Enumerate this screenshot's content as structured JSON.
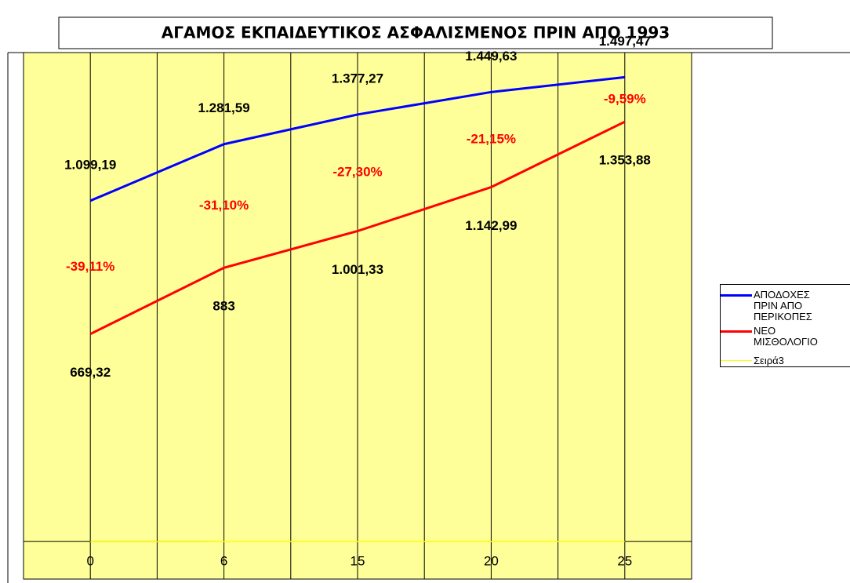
{
  "chart_data": {
    "type": "line",
    "title": "ΑΓΑΜΟΣ ΕΚΠΑΙΔΕΥΤΙΚΟΣ ΑΣΦΑΛΙΣΜΕΝΟΣ ΠΡΙΝ ΑΠΟ 1993",
    "categories": [
      "0",
      "6",
      "15",
      "20",
      "25"
    ],
    "series": [
      {
        "name": "ΑΠΟΔΟΧΕΣ ΠΡΙΝ ΑΠΟ ΠΕΡΙΚΟΠΕΣ",
        "color": "#0000ff",
        "values": [
          1099.19,
          1281.59,
          1377.27,
          1449.63,
          1497.47
        ],
        "value_labels": [
          "1.099,19",
          "1.281,59",
          "1.377,27",
          "1.449,63",
          "1.497,47"
        ]
      },
      {
        "name": "ΝΕΟ ΜΙΣΘΟΛΟΓΙΟ",
        "color": "#ff0000",
        "values": [
          669.32,
          883,
          1001.33,
          1142.99,
          1353.88
        ],
        "value_labels": [
          "669,32",
          "883",
          "1.001,33",
          "1.142,99",
          "1.353,88"
        ]
      },
      {
        "name": "Σειρά3",
        "color": "#ffff00",
        "values": [
          -0.3911,
          -0.311,
          -0.273,
          -0.2115,
          -0.0959
        ],
        "value_labels": [
          "-39,11%",
          "-31,10%",
          "-27,30%",
          "-21,15%",
          "-9,59%"
        ]
      }
    ],
    "ylim": [
      -121,
      1577
    ],
    "legend": "right"
  }
}
